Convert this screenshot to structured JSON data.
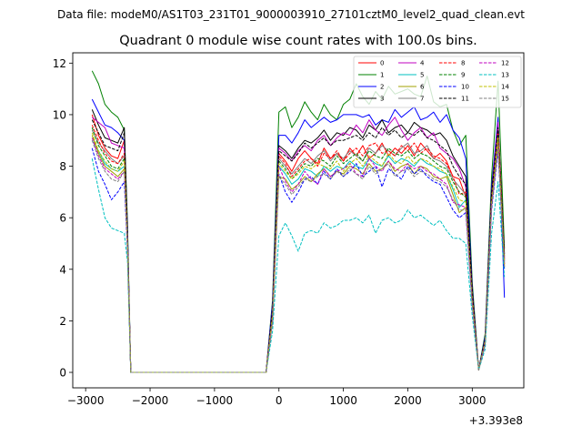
{
  "figure": {
    "suptitle": "Data file: modeM0/AS1T03_231T01_9000003910_27101cztM0_level2_quad_clean.evt"
  },
  "chart_data": {
    "type": "line",
    "title": "Quadrant 0 module wise count rates with 100.0s bins.",
    "xlabel": "",
    "ylabel": "",
    "x_offset_label": "+3.393e8",
    "xlim": [
      -3200,
      3800
    ],
    "ylim": [
      -0.6,
      12.4
    ],
    "xticks": [
      -3000,
      -2000,
      -1000,
      0,
      1000,
      2000,
      3000
    ],
    "xtick_labels": [
      "−3000",
      "−2000",
      "−1000",
      "0",
      "1000",
      "2000",
      "3000"
    ],
    "yticks": [
      0,
      2,
      4,
      6,
      8,
      10,
      12
    ],
    "ytick_labels": [
      "0",
      "2",
      "4",
      "6",
      "8",
      "10",
      "12"
    ],
    "legend_location": "top-right",
    "x": [
      -2900,
      -2800,
      -2700,
      -2600,
      -2500,
      -2400,
      -2350,
      -2300,
      -200,
      -100,
      0,
      100,
      200,
      300,
      400,
      500,
      600,
      700,
      800,
      900,
      1000,
      1100,
      1200,
      1300,
      1400,
      1500,
      1600,
      1700,
      1800,
      1900,
      2000,
      2100,
      2200,
      2300,
      2400,
      2500,
      2600,
      2700,
      2800,
      2900,
      3000,
      3100,
      3200,
      3300,
      3400,
      3500
    ],
    "series": [
      {
        "name": "0",
        "color": "#ff0000",
        "dash": "solid",
        "values": [
          10.0,
          9.2,
          8.7,
          8.4,
          8.3,
          9.0,
          5.2,
          0,
          0,
          2.2,
          8.5,
          8.2,
          7.8,
          8.3,
          8.6,
          8.3,
          8.1,
          8.7,
          8.3,
          8.5,
          8.2,
          8.7,
          8.4,
          8.8,
          8.3,
          8.5,
          8.9,
          8.4,
          8.7,
          8.5,
          8.8,
          8.4,
          8.9,
          8.6,
          8.3,
          8.5,
          8.2,
          7.6,
          7.5,
          6.8,
          3.0,
          0.1,
          1.2,
          6.8,
          9.2,
          4.2
        ]
      },
      {
        "name": "1",
        "color": "#008000",
        "dash": "solid",
        "values": [
          11.7,
          11.2,
          10.4,
          10.1,
          9.9,
          9.4,
          5.8,
          0,
          0,
          2.8,
          10.1,
          10.3,
          9.5,
          9.9,
          10.5,
          10.1,
          9.8,
          10.4,
          10.0,
          9.8,
          10.4,
          10.6,
          11.2,
          10.7,
          10.4,
          10.9,
          10.6,
          11.1,
          10.8,
          10.9,
          11.0,
          10.8,
          10.7,
          11.5,
          10.5,
          10.3,
          10.4,
          9.4,
          8.8,
          9.2,
          3.5,
          0.1,
          1.5,
          7.6,
          11.3,
          4.8
        ]
      },
      {
        "name": "2",
        "color": "#0000ff",
        "dash": "solid",
        "values": [
          10.6,
          10.1,
          9.6,
          9.5,
          9.3,
          9.0,
          5.6,
          0,
          0,
          2.7,
          9.2,
          9.2,
          8.9,
          9.3,
          9.8,
          9.5,
          9.7,
          9.9,
          9.7,
          9.8,
          10.0,
          10.0,
          10.0,
          9.9,
          10.0,
          9.6,
          9.8,
          9.7,
          10.2,
          9.9,
          10.1,
          10.3,
          9.8,
          9.9,
          10.1,
          9.7,
          10.0,
          9.4,
          9.1,
          8.3,
          3.3,
          0.1,
          1.4,
          7.2,
          9.9,
          2.9
        ]
      },
      {
        "name": "3",
        "color": "#000000",
        "dash": "solid",
        "values": [
          10.2,
          9.6,
          9.1,
          9.0,
          8.9,
          9.5,
          5.4,
          0,
          0,
          2.5,
          8.8,
          8.6,
          8.3,
          8.7,
          9.0,
          8.9,
          9.1,
          9.4,
          9.0,
          9.3,
          9.2,
          9.5,
          9.4,
          9.1,
          9.6,
          9.4,
          9.8,
          9.3,
          9.5,
          9.6,
          9.3,
          9.7,
          9.5,
          9.4,
          9.2,
          9.3,
          9.0,
          8.4,
          8.0,
          7.6,
          3.2,
          0.1,
          1.3,
          7.0,
          9.6,
          4.6
        ]
      },
      {
        "name": "4",
        "color": "#c000c0",
        "dash": "solid",
        "values": [
          9.9,
          9.7,
          9.5,
          8.9,
          8.8,
          8.7,
          5.3,
          0,
          0,
          2.4,
          8.7,
          8.5,
          8.2,
          8.6,
          8.8,
          8.6,
          9.0,
          9.2,
          8.8,
          9.1,
          9.3,
          9.2,
          9.6,
          9.3,
          9.8,
          9.4,
          9.2,
          9.6,
          9.9,
          9.4,
          9.0,
          9.3,
          9.5,
          9.1,
          9.3,
          8.7,
          8.5,
          8.3,
          7.9,
          7.2,
          3.1,
          0.1,
          1.3,
          6.9,
          9.7,
          4.4
        ]
      },
      {
        "name": "5",
        "color": "#00c0c0",
        "dash": "solid",
        "values": [
          9.0,
          8.6,
          8.1,
          7.9,
          7.8,
          8.0,
          5.0,
          0,
          0,
          2.1,
          8.0,
          7.7,
          7.3,
          7.5,
          7.9,
          7.8,
          7.6,
          8.0,
          7.8,
          8.0,
          7.9,
          8.2,
          8.0,
          7.9,
          8.3,
          8.1,
          8.0,
          8.4,
          8.1,
          8.3,
          8.2,
          8.0,
          8.3,
          8.1,
          8.0,
          7.8,
          7.7,
          7.1,
          6.4,
          6.7,
          2.8,
          0.1,
          1.2,
          6.6,
          9.1,
          4.3
        ]
      },
      {
        "name": "6",
        "color": "#a0a000",
        "dash": "solid",
        "values": [
          9.2,
          8.5,
          8.0,
          7.8,
          7.6,
          7.9,
          4.9,
          0,
          0,
          2.0,
          7.6,
          7.5,
          7.1,
          7.3,
          7.6,
          7.4,
          7.7,
          7.9,
          7.6,
          7.8,
          7.7,
          8.0,
          7.9,
          7.7,
          8.1,
          7.8,
          7.9,
          8.2,
          7.8,
          8.0,
          8.1,
          7.7,
          8.0,
          7.9,
          7.6,
          7.5,
          7.6,
          6.9,
          6.2,
          6.4,
          2.7,
          0.1,
          1.1,
          6.5,
          8.8,
          4.1
        ]
      },
      {
        "name": "7",
        "color": "#808080",
        "dash": "solid",
        "values": [
          9.4,
          8.9,
          8.6,
          8.3,
          8.1,
          8.4,
          5.1,
          0,
          0,
          2.3,
          8.3,
          8.0,
          7.7,
          8.0,
          8.3,
          8.1,
          8.4,
          8.6,
          8.2,
          8.5,
          8.3,
          8.6,
          8.4,
          8.2,
          8.7,
          8.5,
          8.8,
          8.6,
          8.4,
          8.7,
          8.9,
          8.5,
          8.6,
          8.8,
          8.3,
          8.2,
          8.0,
          7.5,
          7.2,
          6.9,
          2.9,
          0.1,
          1.2,
          6.7,
          9.3,
          4.3
        ]
      },
      {
        "name": "8",
        "color": "#ff0000",
        "dash": "dashed",
        "values": [
          9.6,
          9.0,
          8.5,
          8.2,
          8.1,
          8.5,
          5.1,
          0,
          0,
          2.3,
          8.4,
          8.1,
          7.6,
          7.9,
          8.2,
          8.3,
          8.0,
          8.5,
          8.3,
          8.6,
          8.2,
          8.5,
          8.7,
          8.4,
          8.8,
          8.9,
          8.5,
          8.6,
          8.4,
          8.8,
          8.6,
          8.9,
          8.5,
          8.7,
          8.4,
          8.3,
          8.1,
          7.6,
          6.9,
          7.0,
          3.0,
          0.1,
          1.2,
          6.8,
          9.4,
          4.4
        ]
      },
      {
        "name": "9",
        "color": "#008000",
        "dash": "dashed",
        "values": [
          9.5,
          8.8,
          8.4,
          8.0,
          7.9,
          8.3,
          5.0,
          0,
          0,
          2.2,
          8.2,
          7.9,
          7.5,
          7.8,
          8.1,
          8.0,
          8.3,
          8.2,
          8.0,
          8.4,
          8.1,
          8.3,
          8.5,
          8.2,
          8.6,
          8.4,
          8.3,
          8.7,
          8.5,
          8.4,
          8.6,
          8.3,
          8.5,
          8.4,
          8.2,
          8.0,
          7.9,
          7.4,
          7.0,
          6.8,
          2.9,
          0.1,
          1.2,
          6.7,
          9.2,
          4.3
        ]
      },
      {
        "name": "10",
        "color": "#0000ff",
        "dash": "dashed",
        "values": [
          8.7,
          7.8,
          7.3,
          6.7,
          7.0,
          7.4,
          4.7,
          0,
          0,
          2.0,
          7.7,
          7.0,
          6.6,
          7.0,
          7.5,
          7.6,
          7.3,
          7.8,
          7.5,
          7.9,
          7.6,
          7.8,
          8.1,
          7.6,
          7.8,
          8.0,
          7.2,
          7.9,
          7.7,
          7.5,
          8.0,
          7.7,
          7.9,
          7.6,
          7.4,
          7.3,
          6.8,
          6.3,
          6.0,
          6.2,
          2.6,
          0.1,
          1.1,
          6.3,
          8.6,
          4.0
        ]
      },
      {
        "name": "11",
        "color": "#000000",
        "dash": "dashed",
        "values": [
          9.8,
          9.3,
          8.8,
          8.7,
          8.6,
          9.3,
          5.3,
          0,
          0,
          2.4,
          8.6,
          8.4,
          8.2,
          8.5,
          8.9,
          8.7,
          8.9,
          9.1,
          8.8,
          9.0,
          9.0,
          9.1,
          9.2,
          9.0,
          9.3,
          9.1,
          9.5,
          9.2,
          9.4,
          9.1,
          9.3,
          9.2,
          9.4,
          9.1,
          9.0,
          8.8,
          8.6,
          8.0,
          7.6,
          7.3,
          3.1,
          0.1,
          1.3,
          6.9,
          9.5,
          4.5
        ]
      },
      {
        "name": "12",
        "color": "#c000c0",
        "dash": "dashed",
        "values": [
          9.1,
          8.4,
          7.9,
          7.7,
          7.5,
          7.8,
          4.9,
          0,
          0,
          2.1,
          8.0,
          7.4,
          7.0,
          7.3,
          7.8,
          7.5,
          7.3,
          7.9,
          7.6,
          7.8,
          7.9,
          8.1,
          7.7,
          7.6,
          8.3,
          8.0,
          7.8,
          8.2,
          7.9,
          7.8,
          8.1,
          7.9,
          8.0,
          7.8,
          7.7,
          7.5,
          7.3,
          6.6,
          6.5,
          6.4,
          2.7,
          0.1,
          1.1,
          6.5,
          8.9,
          4.2
        ]
      },
      {
        "name": "13",
        "color": "#00c0c0",
        "dash": "dashed",
        "values": [
          8.3,
          7.1,
          6.0,
          5.6,
          5.5,
          5.4,
          4.3,
          0,
          0,
          1.6,
          5.3,
          5.8,
          5.3,
          4.7,
          5.4,
          5.5,
          5.4,
          5.8,
          5.6,
          5.7,
          5.9,
          5.9,
          6.0,
          5.8,
          6.1,
          5.4,
          5.9,
          6.0,
          5.8,
          5.9,
          6.3,
          6.0,
          6.1,
          5.9,
          5.7,
          5.9,
          5.5,
          5.2,
          5.2,
          5.0,
          2.2,
          0.1,
          0.9,
          5.4,
          7.4,
          3.7
        ]
      },
      {
        "name": "14",
        "color": "#c0c000",
        "dash": "dashed",
        "values": [
          9.3,
          8.6,
          8.2,
          7.9,
          7.8,
          8.2,
          5.0,
          0,
          0,
          2.2,
          8.1,
          7.8,
          7.5,
          7.7,
          8.0,
          7.9,
          8.1,
          8.0,
          7.9,
          8.2,
          7.8,
          8.1,
          8.3,
          8.0,
          8.4,
          8.2,
          8.0,
          8.5,
          8.2,
          8.1,
          8.4,
          8.1,
          8.3,
          8.2,
          8.0,
          7.9,
          7.7,
          7.2,
          6.7,
          6.6,
          2.8,
          0.1,
          1.2,
          6.6,
          9.1,
          4.2
        ]
      },
      {
        "name": "15",
        "color": "#808080",
        "dash": "dashed",
        "values": [
          9.0,
          8.3,
          7.8,
          7.5,
          7.4,
          7.8,
          4.8,
          0,
          0,
          2.0,
          7.6,
          7.3,
          6.9,
          7.2,
          7.5,
          7.4,
          7.6,
          7.7,
          7.5,
          7.8,
          7.6,
          7.9,
          7.7,
          7.5,
          8.0,
          7.7,
          7.9,
          8.1,
          7.6,
          7.8,
          7.9,
          7.6,
          7.8,
          7.7,
          7.5,
          7.4,
          7.2,
          6.7,
          6.3,
          6.3,
          2.6,
          0.1,
          1.1,
          6.4,
          8.7,
          4.1
        ]
      }
    ]
  }
}
